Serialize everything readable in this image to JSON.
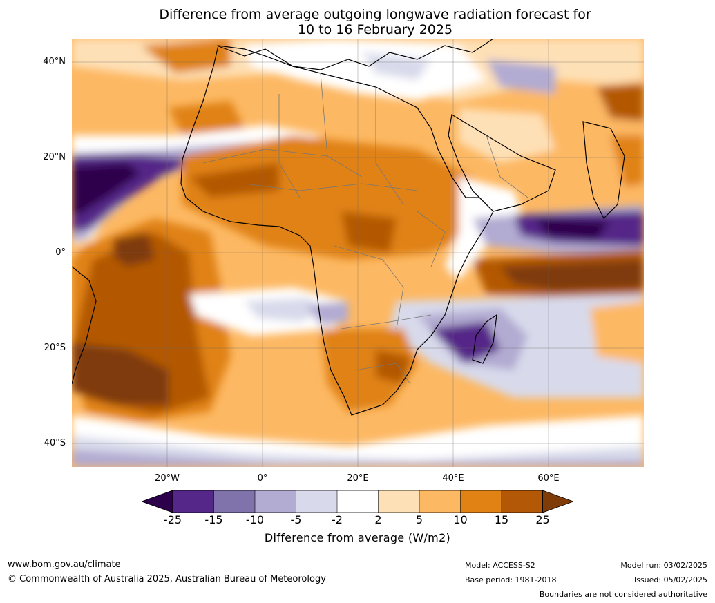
{
  "title": {
    "line1": "Difference from average outgoing longwave radiation forecast for",
    "line2": "10 to 16 February 2025"
  },
  "map": {
    "lat_labels": [
      "40°N",
      "20°N",
      "0°",
      "20°S",
      "40°S"
    ],
    "lon_labels": [
      "20°W",
      "0°",
      "20°E",
      "40°E",
      "60°E"
    ]
  },
  "legend": {
    "title": "Difference from average (W/m2)",
    "ticks": [
      "-25",
      "-15",
      "-10",
      "-5",
      "-2",
      "2",
      "5",
      "10",
      "15",
      "25"
    ],
    "colors": [
      "#2d004b",
      "#542788",
      "#8073ac",
      "#b2abd2",
      "#d8daeb",
      "#ffffff",
      "#fee0b6",
      "#fdb863",
      "#e08214",
      "#b35806",
      "#7f3b08"
    ]
  },
  "footer": {
    "url": "www.bom.gov.au/climate",
    "copyright": "© Commonwealth of Australia 2025, Australian Bureau of Meteorology",
    "model": "Model: ACCESS-S2",
    "base_period": "Base period: 1981-2018",
    "model_run": "Model run: 03/02/2025",
    "issued": "Issued: 05/02/2025",
    "disclaimer": "Boundaries are not considered authoritative"
  }
}
